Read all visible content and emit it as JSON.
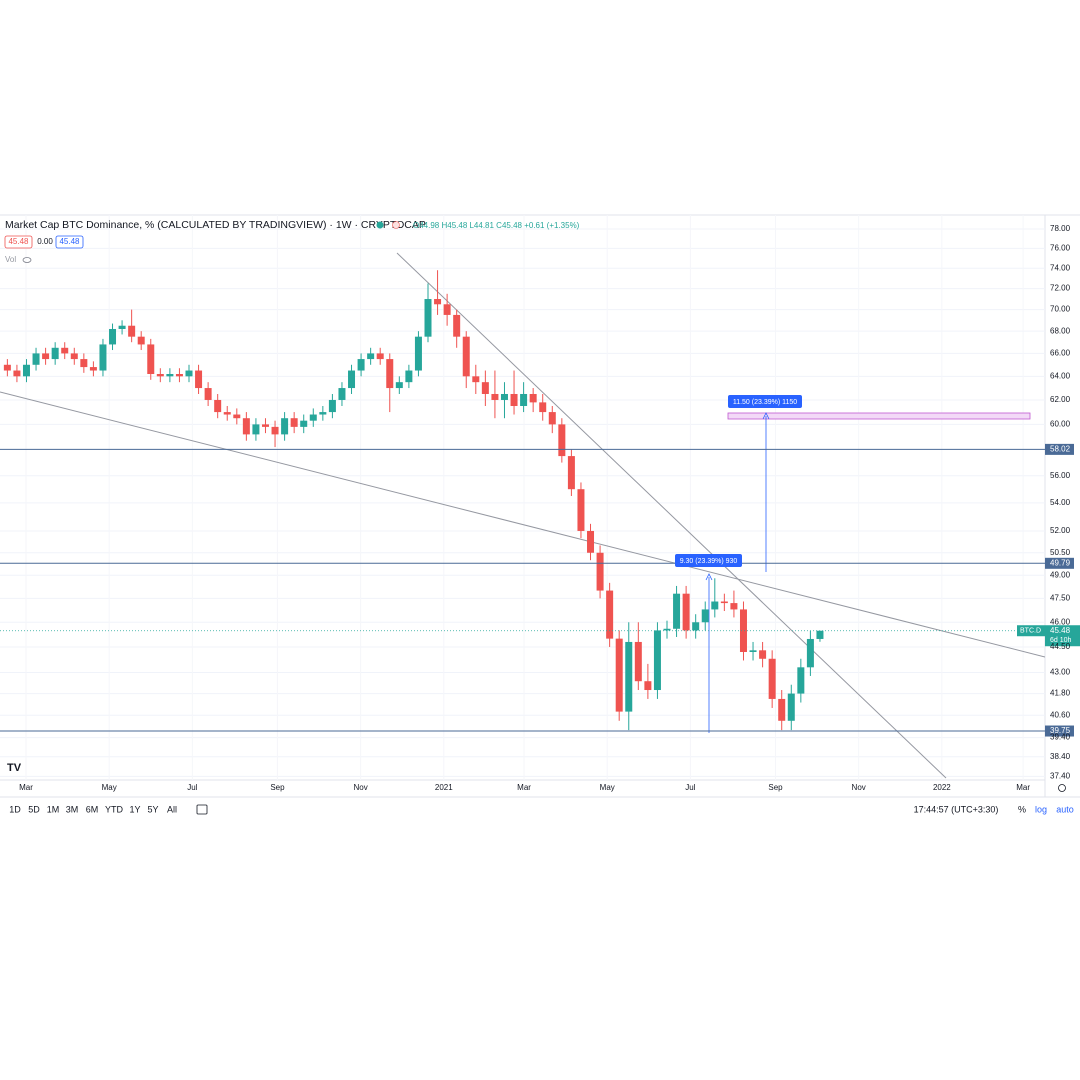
{
  "header": {
    "title": "Market Cap BTC Dominance, % (CALCULATED BY TRADINGVIEW) · 1W · CRYPTOCAP",
    "ohlc": "O44.98 H45.48 L44.81 C45.48 +0.61 (+1.35%)",
    "badges": [
      "45.48",
      "0.00",
      "45.48"
    ],
    "vol": "Vol"
  },
  "toolbar": {
    "ranges": [
      "1D",
      "5D",
      "1M",
      "3M",
      "6M",
      "YTD",
      "1Y",
      "5Y",
      "All"
    ],
    "clock": "17:44:57 (UTC+3:30)",
    "percent": "%",
    "log": "log",
    "auto": "auto"
  },
  "chart_data": {
    "type": "candlestick",
    "log_scale": true,
    "grid": true,
    "up_color": "#26a69a",
    "down_color": "#ef5350",
    "x": [
      6.65,
      7.65,
      8.65,
      9.65,
      10.65,
      11.65,
      12.65,
      13.65,
      14.65,
      15.65,
      16.65,
      17.65,
      18.65,
      19.65,
      20.65,
      21.65,
      22.65,
      23.65,
      24.65,
      25.65,
      26.65,
      27.65,
      28.65,
      29.65,
      30.65,
      31.65,
      32.65,
      33.65,
      34.65,
      35.65,
      36.65,
      37.65,
      38.65,
      39.65,
      40.65,
      41.65,
      42.65,
      43.65,
      44.65,
      45.65,
      46.65,
      47.65,
      48.65,
      49.65,
      50.65,
      51.65,
      52.65,
      53.65,
      54.65,
      55.65,
      56.65,
      57.65,
      58.65,
      59.65,
      60.65,
      61.65,
      62.65,
      63.65,
      64.65,
      65.65,
      66.65,
      67.65,
      68.65,
      69.65,
      70.65,
      71.65,
      72.65,
      73.65,
      74.65,
      75.65,
      76.65,
      77.65,
      78.65,
      79.65,
      80.65,
      81.65,
      82.65,
      83.65,
      84.65,
      85.65,
      86.65,
      87.65,
      88.65,
      89.65,
      90.65,
      91.65
    ],
    "open": [
      65.0,
      64.5,
      64.0,
      65.0,
      66.0,
      65.5,
      66.5,
      66.0,
      65.5,
      64.8,
      64.5,
      66.8,
      68.2,
      68.5,
      67.5,
      66.8,
      64.2,
      64.0,
      64.2,
      64.0,
      64.5,
      63.0,
      62.0,
      61.0,
      60.8,
      60.5,
      59.2,
      60.0,
      59.8,
      59.2,
      60.5,
      59.8,
      60.3,
      60.8,
      61.0,
      62.0,
      63.0,
      64.5,
      65.5,
      66.0,
      65.5,
      63.0,
      63.5,
      64.5,
      67.5,
      71.0,
      70.5,
      69.5,
      67.5,
      64.0,
      63.5,
      62.5,
      62.0,
      62.5,
      61.5,
      62.5,
      61.8,
      61.0,
      60.0,
      57.5,
      55.0,
      52.0,
      50.5,
      48.0,
      45.0,
      40.8,
      44.8,
      42.5,
      42.0,
      45.5,
      45.6,
      47.8,
      45.5,
      46.0,
      46.8,
      47.3,
      47.2,
      46.8,
      44.2,
      44.3,
      43.8,
      41.5,
      40.3,
      41.8,
      43.3,
      44.98
    ],
    "high": [
      65.5,
      65.0,
      65.5,
      66.5,
      66.5,
      67.0,
      67.0,
      66.5,
      66.0,
      65.3,
      67.3,
      68.7,
      69.0,
      70.0,
      68.0,
      67.3,
      64.7,
      64.7,
      64.7,
      65.0,
      65.0,
      63.5,
      62.5,
      61.5,
      61.3,
      61.0,
      60.5,
      60.5,
      60.3,
      61.0,
      61.0,
      60.8,
      61.3,
      61.5,
      62.5,
      63.5,
      65.0,
      66.0,
      66.5,
      66.5,
      66.0,
      64.0,
      65.0,
      68.0,
      72.5,
      73.8,
      71.5,
      70.0,
      68.0,
      65.0,
      64.5,
      64.5,
      63.5,
      64.5,
      63.5,
      63.0,
      62.5,
      61.5,
      60.5,
      58.0,
      55.5,
      52.5,
      51.0,
      48.5,
      45.5,
      46.0,
      46.0,
      43.5,
      46.0,
      46.1,
      48.3,
      48.3,
      46.5,
      47.3,
      48.8,
      47.8,
      48.0,
      47.3,
      44.8,
      44.8,
      44.3,
      42.0,
      42.3,
      43.8,
      45.48,
      45.48
    ],
    "low": [
      64.0,
      63.5,
      63.5,
      64.5,
      65.0,
      65.0,
      65.5,
      65.0,
      64.3,
      64.0,
      64.0,
      66.3,
      67.7,
      67.0,
      66.3,
      63.7,
      63.5,
      63.5,
      63.5,
      63.5,
      62.5,
      61.5,
      60.5,
      60.3,
      60.0,
      58.7,
      58.7,
      59.3,
      58.2,
      58.7,
      59.3,
      59.3,
      59.8,
      60.3,
      60.5,
      61.5,
      62.5,
      64.0,
      65.0,
      65.0,
      61.0,
      62.5,
      63.0,
      64.0,
      67.0,
      69.5,
      68.5,
      66.5,
      63.0,
      62.5,
      61.5,
      60.5,
      60.5,
      60.8,
      61.0,
      61.0,
      60.3,
      59.3,
      57.0,
      54.5,
      51.5,
      50.0,
      47.5,
      44.5,
      40.3,
      39.8,
      42.0,
      41.5,
      41.5,
      45.0,
      45.1,
      45.0,
      45.0,
      45.5,
      46.3,
      46.7,
      46.3,
      43.7,
      43.7,
      43.3,
      41.0,
      39.8,
      39.8,
      41.3,
      42.8,
      44.81
    ],
    "close": [
      64.5,
      64.0,
      65.0,
      66.0,
      65.5,
      66.5,
      66.0,
      65.5,
      64.8,
      64.5,
      66.8,
      68.2,
      68.5,
      67.5,
      66.8,
      64.2,
      64.0,
      64.2,
      64.0,
      64.5,
      63.0,
      62.0,
      61.0,
      60.8,
      60.5,
      59.2,
      60.0,
      59.8,
      59.2,
      60.5,
      59.8,
      60.3,
      60.8,
      61.0,
      62.0,
      63.0,
      64.5,
      65.5,
      66.0,
      65.5,
      63.0,
      63.5,
      64.5,
      67.5,
      71.0,
      70.5,
      69.5,
      67.5,
      64.0,
      63.5,
      62.5,
      62.0,
      62.5,
      61.5,
      62.5,
      61.8,
      61.0,
      60.0,
      57.5,
      55.0,
      52.0,
      50.5,
      48.0,
      45.0,
      40.8,
      44.8,
      42.5,
      42.0,
      45.5,
      45.6,
      47.8,
      45.5,
      46.0,
      46.8,
      47.3,
      47.2,
      46.8,
      44.2,
      44.3,
      43.8,
      41.5,
      40.3,
      41.8,
      43.3,
      44.98,
      45.48
    ],
    "xlim": [
      5.88,
      115.19
    ],
    "xticks": [
      {
        "value": 8.6,
        "label": "Mar"
      },
      {
        "value": 17.3,
        "label": "May"
      },
      {
        "value": 26.0,
        "label": "Jul"
      },
      {
        "value": 34.9,
        "label": "Sep"
      },
      {
        "value": 43.6,
        "label": "Nov"
      },
      {
        "value": 52.3,
        "label": "2021"
      },
      {
        "value": 60.7,
        "label": "Mar"
      },
      {
        "value": 69.4,
        "label": "May"
      },
      {
        "value": 78.1,
        "label": "Jul"
      },
      {
        "value": 87.0,
        "label": "Sep"
      },
      {
        "value": 95.7,
        "label": "Nov"
      },
      {
        "value": 104.4,
        "label": "2022"
      },
      {
        "value": 112.9,
        "label": "Mar"
      }
    ],
    "ylim": [
      37.22,
      79.48
    ],
    "yticks": [
      {
        "value": 78,
        "label": "78.00"
      },
      {
        "value": 76,
        "label": "76.00"
      },
      {
        "value": 74,
        "label": "74.00"
      },
      {
        "value": 72,
        "label": "72.00"
      },
      {
        "value": 70,
        "label": "70.00"
      },
      {
        "value": 68,
        "label": "68.00"
      },
      {
        "value": 66,
        "label": "66.00"
      },
      {
        "value": 64,
        "label": "64.00"
      },
      {
        "value": 62,
        "label": "62.00"
      },
      {
        "value": 60,
        "label": "60.00"
      },
      {
        "value": 56,
        "label": "56.00"
      },
      {
        "value": 54,
        "label": "54.00"
      },
      {
        "value": 52,
        "label": "52.00"
      },
      {
        "value": 50.5,
        "label": "50.50"
      },
      {
        "value": 49,
        "label": "49.00"
      },
      {
        "value": 47.5,
        "label": "47.50"
      },
      {
        "value": 46,
        "label": "46.00"
      },
      {
        "value": 44.5,
        "label": "44.50"
      },
      {
        "value": 43,
        "label": "43.00"
      },
      {
        "value": 41.8,
        "label": "41.80"
      },
      {
        "value": 40.6,
        "label": "40.60"
      },
      {
        "value": 39.4,
        "label": "39.40"
      },
      {
        "value": 38.4,
        "label": "38.40"
      },
      {
        "value": 37.4,
        "label": "37.40"
      }
    ],
    "hlines": [
      58.02,
      49.79,
      39.75
    ],
    "hline_color": "#4a6a96",
    "last_price": 45.48,
    "last_symbol": "BTC.D",
    "countdown": "6d 10h",
    "annotations": [
      "9.30 (23.39%) 930",
      "11.50 (23.39%) 1150"
    ]
  }
}
